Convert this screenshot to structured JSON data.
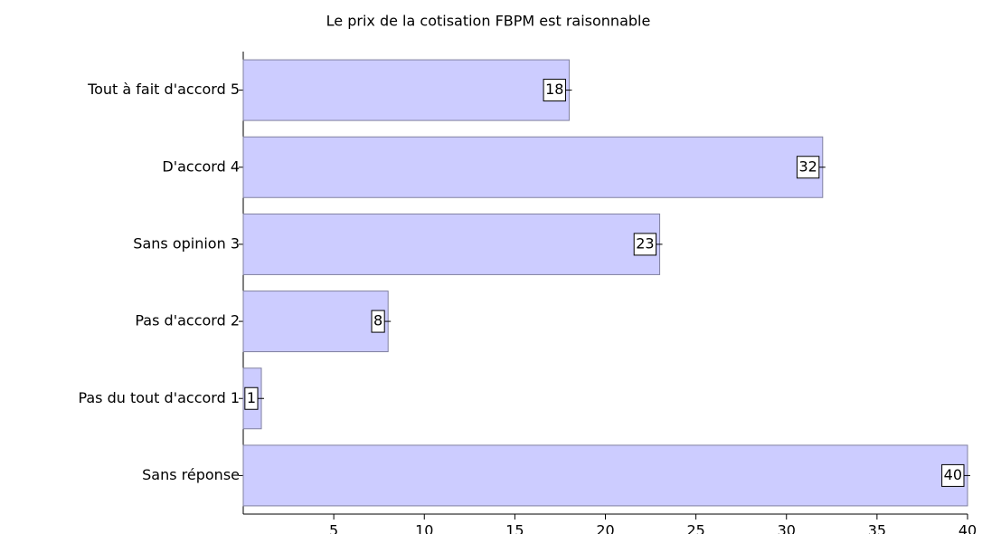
{
  "chart_data": {
    "type": "bar",
    "orientation": "horizontal",
    "title": "Le prix de la cotisation FBPM est raisonnable",
    "categories": [
      "Tout à fait d'accord 5",
      "D'accord 4",
      "Sans opinion 3",
      "Pas d'accord 2",
      "Pas du tout d'accord 1",
      "Sans réponse"
    ],
    "values": [
      18,
      32,
      23,
      8,
      1,
      40
    ],
    "color": "#ccccff",
    "xlim": [
      0,
      40
    ],
    "xticks": [
      5,
      10,
      15,
      20,
      25,
      30,
      35,
      40
    ]
  }
}
